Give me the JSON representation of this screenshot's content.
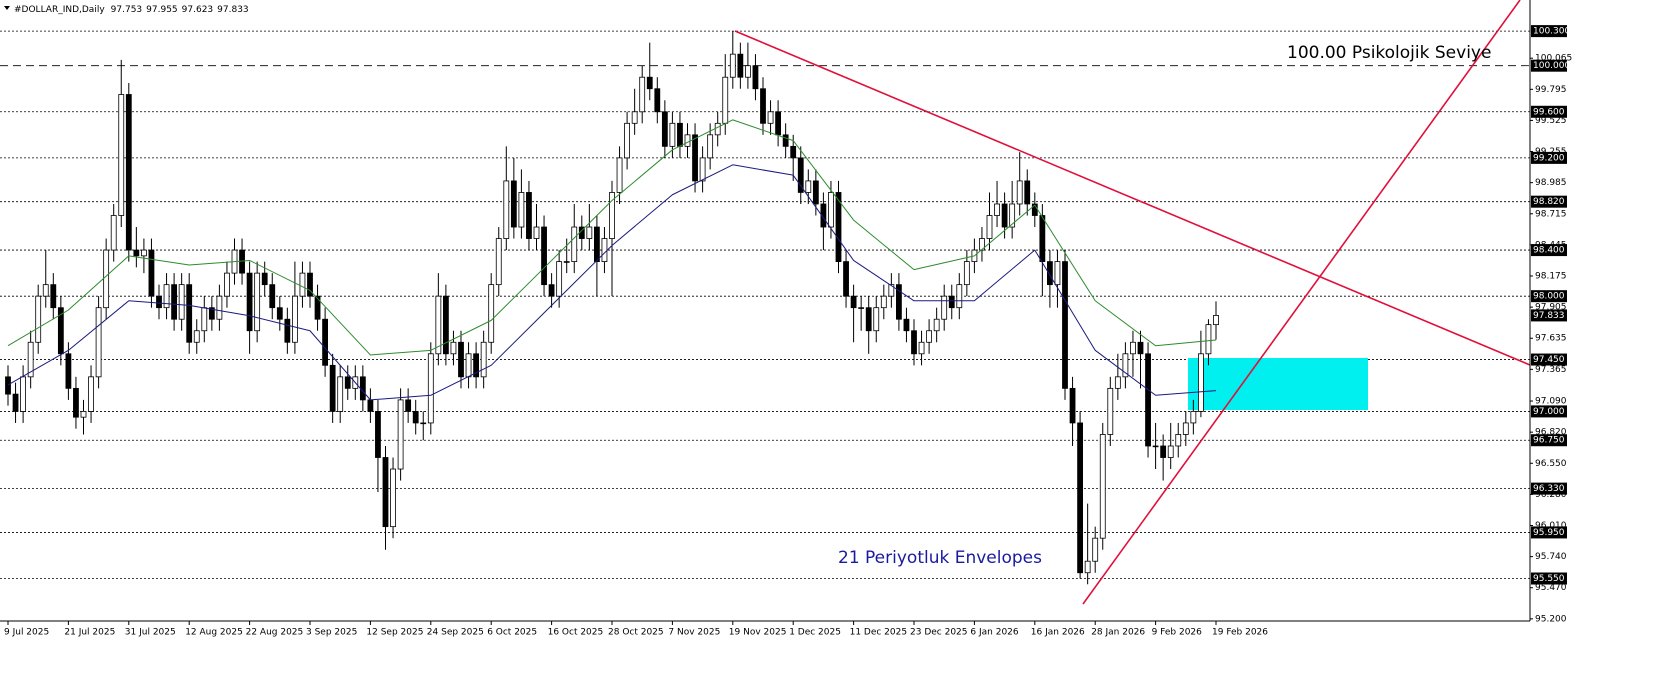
{
  "chart_data": {
    "type": "candlestick",
    "title": "#DOLLAR_IND,Daily",
    "annotations": [
      "100.00 Psikolojik Seviye",
      "21 Periyotluk Envelopes"
    ],
    "ylim": [
      95.19,
      100.57
    ],
    "yticks": [
      {
        "value": 100.065,
        "label": "100.065"
      },
      {
        "value": 99.795,
        "label": "99.795"
      },
      {
        "value": 99.525,
        "label": "99.525"
      },
      {
        "value": 99.255,
        "label": "99.255"
      },
      {
        "value": 98.985,
        "label": "98.985"
      },
      {
        "value": 98.715,
        "label": "98.715"
      },
      {
        "value": 98.445,
        "label": "98.445"
      },
      {
        "value": 98.175,
        "label": "98.175"
      },
      {
        "value": 97.905,
        "label": "97.905"
      },
      {
        "value": 97.635,
        "label": "97.635"
      },
      {
        "value": 97.365,
        "label": "97.365"
      },
      {
        "value": 97.09,
        "label": "97.090"
      },
      {
        "value": 96.82,
        "label": "96.820"
      },
      {
        "value": 96.55,
        "label": "96.550"
      },
      {
        "value": 96.28,
        "label": "96.280"
      },
      {
        "value": 96.01,
        "label": "96.010"
      },
      {
        "value": 95.74,
        "label": "95.740"
      },
      {
        "value": 95.47,
        "label": "95.470"
      },
      {
        "value": 95.2,
        "label": "95.200"
      }
    ],
    "levels": [
      {
        "value": 100.3,
        "label": "100.300",
        "line_style": "dotted"
      },
      {
        "value": 100.0,
        "label": "100.000",
        "line_style": "dashed"
      },
      {
        "value": 99.6,
        "label": "99.600",
        "line_style": "dotted"
      },
      {
        "value": 99.2,
        "label": "99.200",
        "line_style": "dotted"
      },
      {
        "value": 98.82,
        "label": "98.820",
        "line_style": "dotted"
      },
      {
        "value": 98.4,
        "label": "98.400",
        "line_style": "dotted"
      },
      {
        "value": 98.0,
        "label": "98.000",
        "line_style": "dotted"
      },
      {
        "value": 97.45,
        "label": "97.450",
        "line_style": "dotted"
      },
      {
        "value": 97.0,
        "label": "97.000",
        "line_style": "dotted"
      },
      {
        "value": 96.75,
        "label": "96.750",
        "line_style": "dotted"
      },
      {
        "value": 96.33,
        "label": "96.330",
        "line_style": "dotted"
      },
      {
        "value": 95.95,
        "label": "95.950",
        "line_style": "dotted"
      },
      {
        "value": 95.55,
        "label": "95.550",
        "line_style": "dotted"
      }
    ],
    "up_color": "#ffffff",
    "down_color": "#000000",
    "categories": [
      "9 Jul 2025",
      null,
      null,
      null,
      null,
      null,
      null,
      null,
      "21 Jul 2025",
      null,
      null,
      null,
      null,
      null,
      null,
      null,
      "31 Jul 2025",
      null,
      null,
      null,
      null,
      null,
      null,
      null,
      "12 Aug 2025",
      null,
      null,
      null,
      null,
      null,
      null,
      null,
      "22 Aug 2025",
      null,
      null,
      null,
      null,
      null,
      null,
      null,
      "3 Sep 2025",
      null,
      null,
      null,
      null,
      null,
      null,
      null,
      "12 Sep 2025",
      null,
      null,
      null,
      null,
      null,
      null,
      null,
      "24 Sep 2025",
      null,
      null,
      null,
      null,
      null,
      null,
      null,
      "6 Oct 2025",
      null,
      null,
      null,
      null,
      null,
      null,
      null,
      "16 Oct 2025",
      null,
      null,
      null,
      null,
      null,
      null,
      null,
      "28 Oct 2025",
      null,
      null,
      null,
      null,
      null,
      null,
      null,
      "7 Nov 2025",
      null,
      null,
      null,
      null,
      null,
      null,
      null,
      "19 Nov 2025",
      null,
      null,
      null,
      null,
      null,
      null,
      null,
      "1 Dec 2025",
      null,
      null,
      null,
      null,
      null,
      null,
      null,
      "11 Dec 2025",
      null,
      null,
      null,
      null,
      null,
      null,
      null,
      "23 Dec 2025",
      null,
      null,
      null,
      null,
      null,
      null,
      null,
      "6 Jan 2026",
      null,
      null,
      null,
      null,
      null,
      null,
      null,
      "16 Jan 2026",
      null,
      null,
      null,
      null,
      null,
      null,
      null,
      "28 Jan 2026",
      null,
      null,
      null,
      null,
      null,
      null,
      null,
      "9 Feb 2026",
      null,
      null,
      null,
      null,
      null,
      null,
      null,
      "19 Feb 2026"
    ],
    "ohlc": [
      [
        97.3,
        97.4,
        97.05,
        97.15
      ],
      [
        97.15,
        97.25,
        96.9,
        97.0
      ],
      [
        97.0,
        97.4,
        96.9,
        97.3
      ],
      [
        97.3,
        97.7,
        97.2,
        97.6
      ],
      [
        97.6,
        98.1,
        97.5,
        98.0
      ],
      [
        98.0,
        98.4,
        97.9,
        98.1
      ],
      [
        98.1,
        98.2,
        97.8,
        97.9
      ],
      [
        97.9,
        98.0,
        97.4,
        97.5
      ],
      [
        97.5,
        97.6,
        97.1,
        97.2
      ],
      [
        97.2,
        97.3,
        96.85,
        96.95
      ],
      [
        96.95,
        97.1,
        96.8,
        97.0
      ],
      [
        97.0,
        97.4,
        96.9,
        97.3
      ],
      [
        97.3,
        98.0,
        97.2,
        97.9
      ],
      [
        97.9,
        98.5,
        97.8,
        98.4
      ],
      [
        98.4,
        98.8,
        98.3,
        98.7
      ],
      [
        98.7,
        100.05,
        98.6,
        99.75
      ],
      [
        99.75,
        99.85,
        98.3,
        98.4
      ],
      [
        98.4,
        98.6,
        98.25,
        98.35
      ],
      [
        98.35,
        98.5,
        98.2,
        98.4
      ],
      [
        98.4,
        98.5,
        97.9,
        98.0
      ],
      [
        98.0,
        98.1,
        97.8,
        97.9
      ],
      [
        97.9,
        98.2,
        97.8,
        98.1
      ],
      [
        98.1,
        98.2,
        97.7,
        97.8
      ],
      [
        97.8,
        98.2,
        97.7,
        98.1
      ],
      [
        98.1,
        98.2,
        97.5,
        97.6
      ],
      [
        97.6,
        97.8,
        97.5,
        97.7
      ],
      [
        97.7,
        98.0,
        97.6,
        97.9
      ],
      [
        97.9,
        98.0,
        97.7,
        97.8
      ],
      [
        97.8,
        98.1,
        97.7,
        98.0
      ],
      [
        98.0,
        98.3,
        97.9,
        98.2
      ],
      [
        98.2,
        98.5,
        98.1,
        98.4
      ],
      [
        98.4,
        98.5,
        98.1,
        98.2
      ],
      [
        98.2,
        98.3,
        97.5,
        97.7
      ],
      [
        97.7,
        98.3,
        97.6,
        98.2
      ],
      [
        98.2,
        98.3,
        98.0,
        98.1
      ],
      [
        98.1,
        98.2,
        97.8,
        97.9
      ],
      [
        97.9,
        98.0,
        97.7,
        97.8
      ],
      [
        97.8,
        97.9,
        97.5,
        97.6
      ],
      [
        97.6,
        98.3,
        97.5,
        98.0
      ],
      [
        98.0,
        98.3,
        97.9,
        98.2
      ],
      [
        98.2,
        98.3,
        97.9,
        98.0
      ],
      [
        98.0,
        98.1,
        97.7,
        97.8
      ],
      [
        97.8,
        97.9,
        97.3,
        97.4
      ],
      [
        97.4,
        97.5,
        96.9,
        97.0
      ],
      [
        97.0,
        97.4,
        96.9,
        97.3
      ],
      [
        97.3,
        97.4,
        97.1,
        97.2
      ],
      [
        97.2,
        97.4,
        97.1,
        97.3
      ],
      [
        97.3,
        97.4,
        97.0,
        97.1
      ],
      [
        97.1,
        97.2,
        96.9,
        97.0
      ],
      [
        97.0,
        97.1,
        96.3,
        96.6
      ],
      [
        96.6,
        96.7,
        95.8,
        96.0
      ],
      [
        96.0,
        96.6,
        95.9,
        96.5
      ],
      [
        96.5,
        97.2,
        96.4,
        97.1
      ],
      [
        97.1,
        97.2,
        96.9,
        97.0
      ],
      [
        97.0,
        97.1,
        96.8,
        96.9
      ],
      [
        96.9,
        97.0,
        96.75,
        96.9
      ],
      [
        96.9,
        97.6,
        96.8,
        97.5
      ],
      [
        97.5,
        98.2,
        97.4,
        98.0
      ],
      [
        98.0,
        98.1,
        97.4,
        97.5
      ],
      [
        97.5,
        97.7,
        97.4,
        97.6
      ],
      [
        97.6,
        97.7,
        97.2,
        97.3
      ],
      [
        97.3,
        97.6,
        97.2,
        97.5
      ],
      [
        97.5,
        97.6,
        97.2,
        97.3
      ],
      [
        97.3,
        97.7,
        97.2,
        97.6
      ],
      [
        97.6,
        98.2,
        97.5,
        98.1
      ],
      [
        98.1,
        98.6,
        98.0,
        98.5
      ],
      [
        98.5,
        99.3,
        98.4,
        99.0
      ],
      [
        99.0,
        99.2,
        98.5,
        98.6
      ],
      [
        98.6,
        99.1,
        98.5,
        98.9
      ],
      [
        98.9,
        99.0,
        98.4,
        98.5
      ],
      [
        98.5,
        98.8,
        98.4,
        98.6
      ],
      [
        98.6,
        98.7,
        98.0,
        98.1
      ],
      [
        98.1,
        98.2,
        97.9,
        98.0
      ],
      [
        98.0,
        98.4,
        97.9,
        98.3
      ],
      [
        98.3,
        98.5,
        98.2,
        98.3
      ],
      [
        98.3,
        98.8,
        98.2,
        98.6
      ],
      [
        98.6,
        98.7,
        98.4,
        98.5
      ],
      [
        98.5,
        98.8,
        98.4,
        98.6
      ],
      [
        98.6,
        98.7,
        98.0,
        98.3
      ],
      [
        98.3,
        98.6,
        98.2,
        98.5
      ],
      [
        98.5,
        99.0,
        98.0,
        98.9
      ],
      [
        98.9,
        99.3,
        98.8,
        99.2
      ],
      [
        99.2,
        99.6,
        99.1,
        99.5
      ],
      [
        99.5,
        99.8,
        99.4,
        99.6
      ],
      [
        99.6,
        100.0,
        99.5,
        99.9
      ],
      [
        99.9,
        100.2,
        99.7,
        99.8
      ],
      [
        99.8,
        99.9,
        99.5,
        99.6
      ],
      [
        99.6,
        99.7,
        99.2,
        99.3
      ],
      [
        99.3,
        99.6,
        99.2,
        99.5
      ],
      [
        99.5,
        99.6,
        99.2,
        99.3
      ],
      [
        99.3,
        99.5,
        99.2,
        99.4
      ],
      [
        99.4,
        99.5,
        98.9,
        99.0
      ],
      [
        99.0,
        99.3,
        98.9,
        99.2
      ],
      [
        99.2,
        99.5,
        99.1,
        99.4
      ],
      [
        99.4,
        99.6,
        99.3,
        99.5
      ],
      [
        99.5,
        100.1,
        99.4,
        99.9
      ],
      [
        99.9,
        100.3,
        99.8,
        100.1
      ],
      [
        100.1,
        100.2,
        99.8,
        99.9
      ],
      [
        99.9,
        100.2,
        99.8,
        100.0
      ],
      [
        100.0,
        100.1,
        99.7,
        99.8
      ],
      [
        99.8,
        99.9,
        99.4,
        99.5
      ],
      [
        99.5,
        99.7,
        99.4,
        99.6
      ],
      [
        99.6,
        99.7,
        99.3,
        99.4
      ],
      [
        99.4,
        99.5,
        99.2,
        99.3
      ],
      [
        99.3,
        99.4,
        99.0,
        99.2
      ],
      [
        99.2,
        99.3,
        98.8,
        98.9
      ],
      [
        98.9,
        99.1,
        98.8,
        99.0
      ],
      [
        99.0,
        99.1,
        98.7,
        98.8
      ],
      [
        98.8,
        98.9,
        98.4,
        98.6
      ],
      [
        98.6,
        99.0,
        98.5,
        98.9
      ],
      [
        98.9,
        99.0,
        98.2,
        98.3
      ],
      [
        98.3,
        98.4,
        97.9,
        98.0
      ],
      [
        98.0,
        98.1,
        97.6,
        97.9
      ],
      [
        97.9,
        98.0,
        97.7,
        97.9
      ],
      [
        97.9,
        98.0,
        97.5,
        97.7
      ],
      [
        97.7,
        98.0,
        97.6,
        97.9
      ],
      [
        97.9,
        98.1,
        97.8,
        98.0
      ],
      [
        98.0,
        98.2,
        97.9,
        98.1
      ],
      [
        98.1,
        98.2,
        97.7,
        97.8
      ],
      [
        97.8,
        97.9,
        97.6,
        97.7
      ],
      [
        97.7,
        97.8,
        97.4,
        97.5
      ],
      [
        97.5,
        97.7,
        97.4,
        97.6
      ],
      [
        97.6,
        97.8,
        97.5,
        97.7
      ],
      [
        97.7,
        97.9,
        97.6,
        97.8
      ],
      [
        97.8,
        98.1,
        97.7,
        98.0
      ],
      [
        98.0,
        98.1,
        97.8,
        97.9
      ],
      [
        97.9,
        98.2,
        97.8,
        98.1
      ],
      [
        98.1,
        98.4,
        98.0,
        98.3
      ],
      [
        98.3,
        98.5,
        98.2,
        98.4
      ],
      [
        98.4,
        98.6,
        98.3,
        98.5
      ],
      [
        98.5,
        98.9,
        98.4,
        98.7
      ],
      [
        98.7,
        99.0,
        98.6,
        98.8
      ],
      [
        98.8,
        98.9,
        98.5,
        98.6
      ],
      [
        98.6,
        99.0,
        98.5,
        98.8
      ],
      [
        98.8,
        99.25,
        98.7,
        99.0
      ],
      [
        99.0,
        99.1,
        98.7,
        98.8
      ],
      [
        98.8,
        98.9,
        98.6,
        98.7
      ],
      [
        98.7,
        98.8,
        98.0,
        98.3
      ],
      [
        98.3,
        98.4,
        97.9,
        98.1
      ],
      [
        98.1,
        98.4,
        97.9,
        98.3
      ],
      [
        98.3,
        98.4,
        97.1,
        97.2
      ],
      [
        97.2,
        97.3,
        96.7,
        96.9
      ],
      [
        96.9,
        97.0,
        95.55,
        95.6
      ],
      [
        95.6,
        96.2,
        95.5,
        95.7
      ],
      [
        95.7,
        96.0,
        95.6,
        95.9
      ],
      [
        95.9,
        96.9,
        95.8,
        96.8
      ],
      [
        96.8,
        97.3,
        96.7,
        97.2
      ],
      [
        97.2,
        97.5,
        97.1,
        97.3
      ],
      [
        97.3,
        97.6,
        97.2,
        97.5
      ],
      [
        97.5,
        97.7,
        97.3,
        97.6
      ],
      [
        97.6,
        97.7,
        97.2,
        97.5
      ],
      [
        97.5,
        97.6,
        96.6,
        96.7
      ],
      [
        96.7,
        96.9,
        96.5,
        96.7
      ],
      [
        96.7,
        96.8,
        96.4,
        96.6
      ],
      [
        96.6,
        96.9,
        96.5,
        96.7
      ],
      [
        96.7,
        96.9,
        96.6,
        96.8
      ],
      [
        96.8,
        97.0,
        96.7,
        96.9
      ],
      [
        96.9,
        97.1,
        96.8,
        97.0
      ],
      [
        97.0,
        97.7,
        96.95,
        97.5
      ],
      [
        97.5,
        97.8,
        97.4,
        97.753
      ],
      [
        97.753,
        97.955,
        97.623,
        97.833
      ]
    ],
    "series": [
      {
        "color": "#2e8b2e",
        "x": [
          0,
          8,
          16,
          24,
          32,
          40,
          48,
          56,
          64,
          72,
          80,
          88,
          96,
          104,
          112,
          120,
          128,
          136,
          144,
          152,
          160
        ],
        "values": [
          97.57,
          97.88,
          98.35,
          98.27,
          98.31,
          98.05,
          97.49,
          97.53,
          97.79,
          98.31,
          98.83,
          99.27,
          99.53,
          99.35,
          98.66,
          98.23,
          98.35,
          98.79,
          97.96,
          97.57,
          97.62
        ]
      },
      {
        "color": "#1a1a80",
        "x": [
          0,
          8,
          16,
          24,
          32,
          40,
          48,
          56,
          64,
          72,
          80,
          88,
          96,
          104,
          112,
          120,
          128,
          136,
          144,
          152,
          160
        ],
        "values": [
          97.23,
          97.53,
          97.96,
          97.92,
          97.83,
          97.7,
          97.1,
          97.14,
          97.4,
          97.92,
          98.44,
          98.88,
          99.14,
          99.05,
          98.31,
          97.96,
          97.96,
          98.4,
          97.53,
          97.14,
          97.18
        ]
      }
    ]
  }
}
